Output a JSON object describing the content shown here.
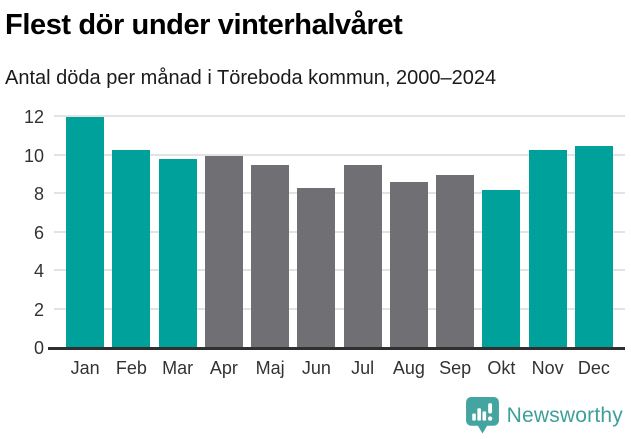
{
  "header": {
    "title": "Flest dör under vinterhalvåret",
    "subtitle": "Antal döda per månad i Töreboda kommun, 2000–2024"
  },
  "chart_data": {
    "type": "bar",
    "title": "Flest dör under vinterhalvåret",
    "subtitle": "Antal döda per månad i Töreboda kommun, 2000–2024",
    "categories": [
      "Jan",
      "Feb",
      "Mar",
      "Apr",
      "Maj",
      "Jun",
      "Jul",
      "Aug",
      "Sep",
      "Okt",
      "Nov",
      "Dec"
    ],
    "values": [
      12.0,
      10.3,
      9.8,
      10.0,
      9.5,
      8.3,
      9.5,
      8.6,
      9.0,
      8.2,
      10.3,
      10.5
    ],
    "highlighted": [
      true,
      true,
      true,
      false,
      false,
      false,
      false,
      false,
      false,
      true,
      true,
      true
    ],
    "palette": {
      "highlight": "#00a19a",
      "base": "#6f6f74"
    },
    "xlabel": "",
    "ylabel": "",
    "ylim": [
      0,
      12
    ],
    "yticks": [
      0,
      2,
      4,
      6,
      8,
      10,
      12
    ],
    "grid": true,
    "legend": "none"
  },
  "footer": {
    "brand": "Newsworthy",
    "brand_color": "#3f9f9a",
    "logo_icon": "bar-chart-speech-bubble"
  }
}
